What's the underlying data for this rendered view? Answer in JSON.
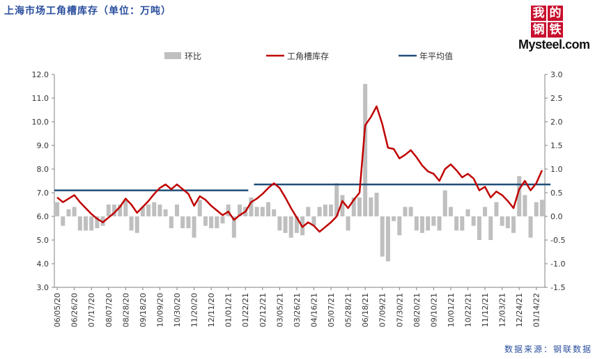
{
  "title": "上海市场工角槽库存（单位：万吨）",
  "source": "数据来源：钢联数据",
  "logo": {
    "chars": [
      "我",
      "的",
      "钢",
      "铁"
    ],
    "brand": "Mysteel.com"
  },
  "colors": {
    "bar": "#bfbfbf",
    "inventory": "#c00000",
    "average": "#1f4e79",
    "title": "#2a4f9e"
  },
  "chart_data": {
    "type": "bar+line",
    "legend": [
      "环比",
      "工角槽库存",
      "年平均值"
    ],
    "legend_position": "top-center",
    "grid": false,
    "ylim_left": [
      3.0,
      12.0
    ],
    "ylim_right": [
      -1.5,
      3.0
    ],
    "yticks_left": [
      "12.0",
      "11.0",
      "10.0",
      "9.0",
      "8.0",
      "7.0",
      "6.0",
      "5.0",
      "4.0",
      "3.0"
    ],
    "yticks_right": [
      "3.0",
      "2.5",
      "2.0",
      "1.5",
      "1.0",
      "0.5",
      "0.0",
      "-0.5",
      "-1.0",
      "-1.5"
    ],
    "xtick_labels": [
      "06/05/20",
      "06/26/20",
      "07/17/20",
      "08/07/20",
      "08/28/20",
      "09/18/20",
      "10/09/20",
      "10/30/20",
      "11/20/20",
      "12/11/20",
      "01/01/21",
      "01/22/21",
      "02/12/21",
      "03/05/21",
      "03/26/21",
      "04/16/21",
      "05/07/21",
      "05/28/21",
      "06/18/21",
      "07/09/21",
      "07/30/21",
      "08/20/21",
      "09/10/21",
      "10/01/21",
      "10/22/21",
      "11/12/21",
      "12/03/21",
      "12/24/21",
      "01/14/22"
    ],
    "series": [
      {
        "name": "工角槽库存",
        "axis": "left",
        "type": "line",
        "values": [
          6.8,
          6.6,
          6.75,
          6.9,
          6.6,
          6.35,
          6.1,
          5.9,
          5.75,
          5.95,
          6.15,
          6.4,
          6.75,
          6.5,
          6.15,
          6.4,
          6.65,
          6.95,
          7.2,
          7.35,
          7.15,
          7.35,
          7.15,
          6.95,
          6.45,
          6.85,
          6.7,
          6.45,
          6.25,
          6.05,
          6.2,
          5.85,
          6.05,
          6.2,
          6.6,
          6.75,
          6.95,
          7.2,
          7.4,
          7.2,
          6.8,
          6.35,
          5.95,
          5.55,
          5.75,
          5.6,
          5.35,
          5.55,
          5.75,
          6.0,
          6.65,
          6.35,
          6.7,
          7.0,
          9.85,
          10.2,
          10.65,
          9.9,
          8.9,
          8.85,
          8.45,
          8.6,
          8.8,
          8.5,
          8.15,
          7.9,
          7.8,
          7.5,
          8.0,
          8.2,
          7.95,
          7.65,
          7.8,
          7.6,
          7.1,
          7.25,
          6.8,
          7.05,
          6.9,
          6.65,
          6.35,
          7.15,
          7.5,
          7.1,
          7.4,
          7.95
        ]
      },
      {
        "name": "环比",
        "axis": "right",
        "type": "bar",
        "values": [
          0.3,
          -0.2,
          0.15,
          0.2,
          -0.3,
          -0.3,
          -0.3,
          -0.25,
          -0.2,
          0.25,
          0.25,
          0.25,
          0.35,
          -0.3,
          -0.35,
          0.2,
          0.25,
          0.3,
          0.25,
          0.15,
          -0.25,
          0.25,
          -0.25,
          -0.25,
          -0.45,
          0.35,
          -0.2,
          -0.25,
          -0.25,
          -0.15,
          0.25,
          -0.45,
          0.25,
          0.2,
          0.4,
          0.2,
          0.2,
          0.3,
          0.15,
          -0.3,
          -0.35,
          -0.45,
          -0.35,
          -0.4,
          0.2,
          -0.2,
          0.2,
          0.25,
          0.25,
          0.7,
          0.45,
          -0.3,
          0.4,
          0.4,
          2.8,
          0.4,
          0.5,
          -0.85,
          -0.95,
          -0.1,
          -0.4,
          0.2,
          0.2,
          -0.3,
          -0.35,
          -0.3,
          -0.2,
          -0.3,
          0.55,
          0.2,
          -0.3,
          -0.3,
          0.15,
          -0.2,
          -0.5,
          0.2,
          -0.5,
          0.3,
          -0.2,
          -0.25,
          -0.35,
          0.85,
          0.45,
          -0.45,
          0.3,
          0.35
        ]
      },
      {
        "name": "年平均值",
        "axis": "left",
        "type": "line",
        "segments": [
          {
            "start": 0,
            "end": 33,
            "value": 7.1
          },
          {
            "start": 35,
            "end": 86,
            "value": 7.35
          }
        ]
      }
    ]
  }
}
